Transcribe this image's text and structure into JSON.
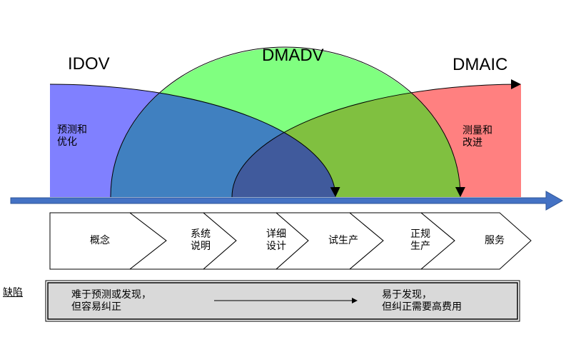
{
  "methods": {
    "idov": "IDOV",
    "dmadv": "DMADV",
    "dmaic": "DMAIC"
  },
  "region_labels": {
    "predict_optimize": "预测和\n优化",
    "measure_improve": "测量和\n改进"
  },
  "stages": [
    "概念",
    "系统\n说明",
    "详细\n设计",
    "试生产",
    "正规\n生产",
    "服务"
  ],
  "defects": {
    "label": "缺陷",
    "early": "难于预测或发现，\n但容易纠正",
    "late": "易于发现，\n但纠正需要高费用"
  },
  "colors": {
    "idov": "#8080ff",
    "dmadv": "#80ff80",
    "dmaic": "#ff8080",
    "idov_dmadv_overlap": "#4080c0",
    "dmadv_dmaic_overlap": "#80c040",
    "all_overlap": "#405a9c",
    "timeline": "#4472c4",
    "defect_box": "#d9d9d9"
  }
}
